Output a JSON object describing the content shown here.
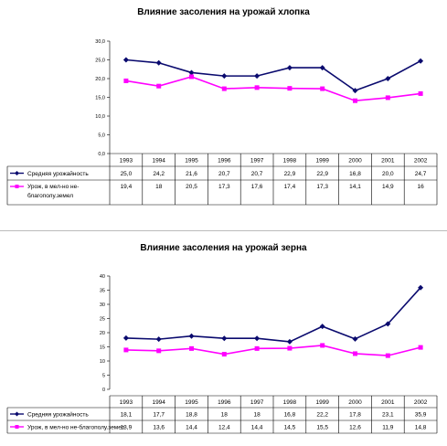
{
  "colors": {
    "series1": "#0a0a6e",
    "series2": "#ff00ff",
    "grid": "#000000"
  },
  "chart_data": [
    {
      "type": "line",
      "title": "Влияние засоления на урожай  хлопка",
      "categories": [
        "1993",
        "1994",
        "1995",
        "1996",
        "1997",
        "1998",
        "1999",
        "2000",
        "2001",
        "2002"
      ],
      "ylim": [
        0,
        30
      ],
      "y_ticks": [
        "0,0",
        "5,0",
        "10,0",
        "15,0",
        "20,0",
        "25,0",
        "30,0"
      ],
      "series": [
        {
          "name": "Средняя урожайность",
          "marker": "diamond",
          "values": [
            25.0,
            24.2,
            21.6,
            20.7,
            20.7,
            22.9,
            22.9,
            16.8,
            20.0,
            24.7
          ],
          "labels": [
            "25,0",
            "24,2",
            "21,6",
            "20,7",
            "20,7",
            "22,9",
            "22,9",
            "16,8",
            "20,0",
            "24,7"
          ]
        },
        {
          "name": "Урож, в мел-но не-благополу.земел",
          "marker": "square",
          "name_lines": [
            "Урож, в мел-но не-",
            "благополу.земел"
          ],
          "values": [
            19.4,
            18,
            20.5,
            17.3,
            17.6,
            17.4,
            17.3,
            14.1,
            14.9,
            16
          ],
          "labels": [
            "19,4",
            "18",
            "20,5",
            "17,3",
            "17,6",
            "17,4",
            "17,3",
            "14,1",
            "14,9",
            "16"
          ]
        }
      ]
    },
    {
      "type": "line",
      "title": "Влияние засоления на урожай зерна",
      "categories": [
        "1993",
        "1994",
        "1995",
        "1996",
        "1997",
        "1998",
        "1999",
        "2000",
        "2001",
        "2002"
      ],
      "ylim": [
        0,
        40
      ],
      "y_ticks": [
        "0",
        "5",
        "10",
        "15",
        "20",
        "25",
        "30",
        "35",
        "40"
      ],
      "series": [
        {
          "name": "Средняя урожайность",
          "marker": "diamond",
          "values": [
            18.1,
            17.7,
            18.8,
            18,
            18,
            16.8,
            22.2,
            17.8,
            23.1,
            35.9
          ],
          "labels": [
            "18,1",
            "17,7",
            "18,8",
            "18",
            "18",
            "16,8",
            "22,2",
            "17,8",
            "23,1",
            "35,9"
          ]
        },
        {
          "name": "Урож, в мел-но не-благополу.земел",
          "marker": "square",
          "name_lines": [
            "Урож, в мел-но не-благополу.земел"
          ],
          "values": [
            13.9,
            13.6,
            14.4,
            12.4,
            14.4,
            14.5,
            15.5,
            12.6,
            11.9,
            14.8
          ],
          "labels": [
            "13,9",
            "13,6",
            "14,4",
            "12,4",
            "14,4",
            "14,5",
            "15,5",
            "12,6",
            "11,9",
            "14,8"
          ]
        }
      ]
    }
  ]
}
